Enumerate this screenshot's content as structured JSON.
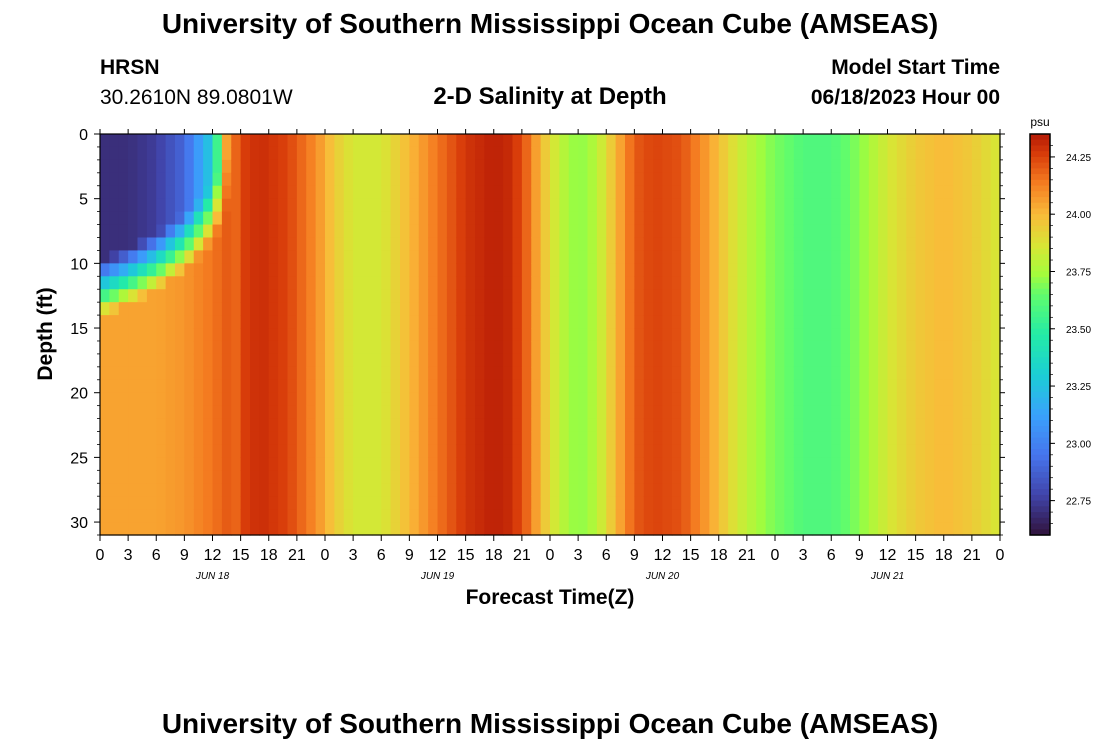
{
  "header": {
    "title": "University of Southern Mississippi Ocean Cube (AMSEAS)",
    "station": "HRSN",
    "coords": "30.2610N  89.0801W",
    "subtitle": "2-D Salinity at Depth",
    "start_label": "Model Start Time",
    "start_value": "06/18/2023 Hour 00"
  },
  "footer": {
    "title": "University of Southern Mississippi Ocean Cube (AMSEAS)"
  },
  "chart_data": {
    "type": "heatmap",
    "title": "2-D Salinity at Depth",
    "xlabel": "Forecast Time(Z)",
    "ylabel": "Depth (ft)",
    "x_hours_range": [
      0,
      96
    ],
    "ylim": [
      0,
      31
    ],
    "y_ticks": [
      0,
      5,
      10,
      15,
      20,
      25,
      30
    ],
    "x_tick_labels": [
      "0",
      "3",
      "6",
      "9",
      "12",
      "15",
      "18",
      "21",
      "0",
      "3",
      "6",
      "9",
      "12",
      "15",
      "18",
      "21",
      "0",
      "3",
      "6",
      "9",
      "12",
      "15",
      "18",
      "21",
      "0",
      "3",
      "6",
      "9",
      "12",
      "15",
      "18",
      "21",
      "0"
    ],
    "day_labels": [
      {
        "hour": 12,
        "label": "JUN 18"
      },
      {
        "hour": 36,
        "label": "JUN 19"
      },
      {
        "hour": 60,
        "label": "JUN 20"
      },
      {
        "hour": 84,
        "label": "JUN 21"
      }
    ],
    "colorbar": {
      "unit": "psu",
      "range": [
        22.6,
        24.35
      ],
      "ticks": [
        "22.75",
        "23.00",
        "23.25",
        "23.50",
        "23.75",
        "24.00",
        "24.25"
      ]
    },
    "surface_series_hours": [
      0,
      3,
      6,
      9,
      12,
      13.5,
      15,
      17,
      20,
      23,
      25,
      27,
      30,
      33,
      36,
      39,
      42,
      44,
      45.5,
      47,
      49,
      51,
      53,
      55,
      57,
      59,
      62,
      65,
      68,
      70,
      72,
      73.5,
      75,
      78,
      81,
      84,
      87,
      90,
      93,
      96
    ],
    "surface_series_psu": [
      22.7,
      22.7,
      22.75,
      22.9,
      23.3,
      24.05,
      24.25,
      24.3,
      24.25,
      24.1,
      23.95,
      23.85,
      23.85,
      24.0,
      24.15,
      24.28,
      24.33,
      24.3,
      24.18,
      24.0,
      23.8,
      23.7,
      23.78,
      24.0,
      24.2,
      24.25,
      24.22,
      24.05,
      23.85,
      23.75,
      23.68,
      23.65,
      23.6,
      23.6,
      23.7,
      23.85,
      23.95,
      24.0,
      23.95,
      23.85
    ],
    "bottom_series_psu": [
      24.05,
      24.05,
      24.05,
      24.08,
      24.15,
      24.2,
      24.25,
      24.3,
      24.25,
      24.1,
      23.95,
      23.85,
      23.85,
      24.0,
      24.15,
      24.28,
      24.33,
      24.3,
      24.18,
      24.0,
      23.8,
      23.7,
      23.78,
      24.0,
      24.2,
      24.25,
      24.22,
      24.05,
      23.85,
      23.75,
      23.68,
      23.65,
      23.6,
      23.6,
      23.7,
      23.85,
      23.95,
      24.08,
      24.12,
      24.05
    ]
  }
}
